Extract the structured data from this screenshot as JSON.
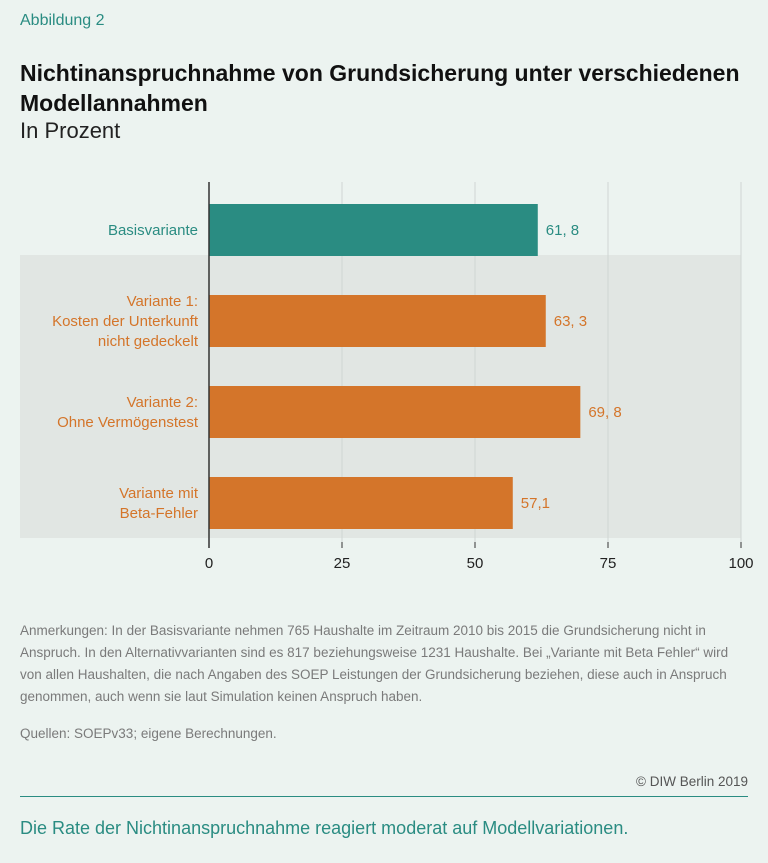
{
  "figure_label": "Abbildung 2",
  "title": "Nichtinanspruchnahme von Grundsicherung unter verschiedenen Modellannahmen",
  "subtitle": "In Prozent",
  "colors": {
    "teal": "#2a8c82",
    "orange": "#d4752a",
    "band": "#e1e6e3",
    "grid": "#cfd6d3",
    "axis": "#333333"
  },
  "chart_data": {
    "type": "bar",
    "orientation": "horizontal",
    "categories": [
      [
        "Basisvariante"
      ],
      [
        "Variante 1:",
        "Kosten der Unterkunft",
        "nicht gedeckelt"
      ],
      [
        "Variante 2:",
        "Ohne Vermögenstest"
      ],
      [
        "Variante mit",
        "Beta-Fehler"
      ]
    ],
    "values": [
      61.8,
      63.3,
      69.8,
      57.1
    ],
    "value_labels": [
      "61, 8",
      "63, 3",
      "69, 8",
      "57,1"
    ],
    "bar_colors": [
      "teal",
      "orange",
      "orange",
      "orange"
    ],
    "label_colors": [
      "teal",
      "orange",
      "orange",
      "orange"
    ],
    "xlim": [
      0,
      100
    ],
    "xticks": [
      0,
      25,
      50,
      75,
      100
    ],
    "xlabel": "",
    "ylabel": "",
    "grid": true,
    "shaded_group": [
      1,
      3
    ]
  },
  "note": "Anmerkungen: In der Basisvariante nehmen 765 Haushalte im Zeitraum 2010 bis 2015 die Grundsicherung nicht in Anspruch. In den Alternativvarianten sind es 817 beziehungsweise 1231 Haushalte. Bei „Variante mit Beta Fehler“ wird von allen Haushalten, die nach Angaben des SOEP Leistungen der Grundsicherung beziehen, diese auch in Anspruch genommen, auch wenn sie laut Simulation keinen Anspruch haben.",
  "source": "Quellen: SOEPv33; eigene Berechnungen.",
  "copyright": "© DIW Berlin 2019",
  "takeaway": "Die Rate der Nichtinanspruchnahme reagiert moderat auf Modellvariationen."
}
